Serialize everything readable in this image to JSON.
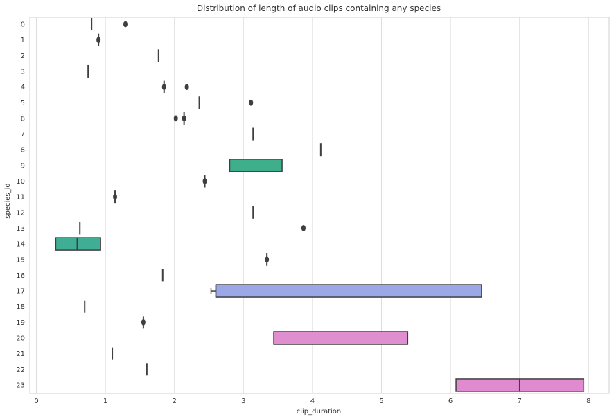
{
  "chart_data": {
    "type": "box",
    "orientation": "horizontal",
    "title": "Distribution of length of audio clips containing any species",
    "xlabel": "clip_duration",
    "ylabel": "species_id",
    "xlim": [
      -0.1,
      8.3
    ],
    "xticks": [
      0,
      1,
      2,
      3,
      4,
      5,
      6,
      7,
      8
    ],
    "grid": "vertical",
    "categories": [
      "0",
      "1",
      "2",
      "3",
      "4",
      "5",
      "6",
      "7",
      "8",
      "9",
      "10",
      "11",
      "12",
      "13",
      "14",
      "15",
      "16",
      "17",
      "18",
      "19",
      "20",
      "21",
      "22",
      "23"
    ],
    "boxes": [
      {
        "category": "0",
        "q1": 0.8,
        "median": 0.8,
        "q3": 0.8,
        "outliers": [
          1.29
        ]
      },
      {
        "category": "1",
        "q1": 0.9,
        "median": 0.9,
        "q3": 0.9,
        "outliers": [
          0.9
        ]
      },
      {
        "category": "2",
        "q1": 1.77,
        "median": 1.77,
        "q3": 1.77,
        "outliers": []
      },
      {
        "category": "3",
        "q1": 0.75,
        "median": 0.75,
        "q3": 0.75,
        "outliers": []
      },
      {
        "category": "4",
        "q1": 1.85,
        "median": 1.85,
        "q3": 1.85,
        "outliers": [
          1.85,
          2.18
        ]
      },
      {
        "category": "5",
        "q1": 2.36,
        "median": 2.36,
        "q3": 2.36,
        "outliers": [
          3.11
        ]
      },
      {
        "category": "6",
        "q1": 2.14,
        "median": 2.14,
        "q3": 2.14,
        "outliers": [
          2.02,
          2.14
        ]
      },
      {
        "category": "7",
        "q1": 3.14,
        "median": 3.14,
        "q3": 3.14,
        "outliers": []
      },
      {
        "category": "8",
        "q1": 4.12,
        "median": 4.12,
        "q3": 4.12,
        "outliers": []
      },
      {
        "category": "9",
        "q1": 2.8,
        "median": 2.8,
        "q3": 3.56,
        "outliers": []
      },
      {
        "category": "10",
        "q1": 2.44,
        "median": 2.44,
        "q3": 2.44,
        "outliers": [
          2.44
        ]
      },
      {
        "category": "11",
        "q1": 1.14,
        "median": 1.14,
        "q3": 1.14,
        "outliers": [
          1.14
        ]
      },
      {
        "category": "12",
        "q1": 3.14,
        "median": 3.14,
        "q3": 3.14,
        "outliers": []
      },
      {
        "category": "13",
        "q1": 0.63,
        "median": 0.63,
        "q3": 0.63,
        "outliers": [
          3.87
        ]
      },
      {
        "category": "14",
        "q1": 0.28,
        "median": 0.59,
        "q3": 0.93,
        "outliers": []
      },
      {
        "category": "15",
        "q1": 3.34,
        "median": 3.34,
        "q3": 3.34,
        "outliers": [
          3.34
        ]
      },
      {
        "category": "16",
        "q1": 1.83,
        "median": 1.83,
        "q3": 1.83,
        "outliers": []
      },
      {
        "category": "17",
        "q1": 2.6,
        "median": 2.6,
        "q3": 6.45,
        "whisker_low": 2.53,
        "outliers": []
      },
      {
        "category": "18",
        "q1": 0.7,
        "median": 0.7,
        "q3": 0.7,
        "outliers": []
      },
      {
        "category": "19",
        "q1": 1.55,
        "median": 1.55,
        "q3": 1.55,
        "outliers": [
          1.55
        ]
      },
      {
        "category": "20",
        "q1": 3.44,
        "median": 3.44,
        "q3": 5.38,
        "outliers": []
      },
      {
        "category": "21",
        "q1": 1.1,
        "median": 1.1,
        "q3": 1.1,
        "outliers": []
      },
      {
        "category": "22",
        "q1": 1.6,
        "median": 1.6,
        "q3": 1.6,
        "outliers": []
      },
      {
        "category": "23",
        "q1": 6.08,
        "median": 7.0,
        "q3": 7.93,
        "outliers": []
      }
    ],
    "colors": {
      "9": "#3fae8a",
      "14": "#3fae95",
      "17": "#9aa8e8",
      "20": "#df8fcf",
      "23": "#e08bd0",
      "stroke": "#3f3f3f",
      "grid": "#dddddd"
    }
  }
}
